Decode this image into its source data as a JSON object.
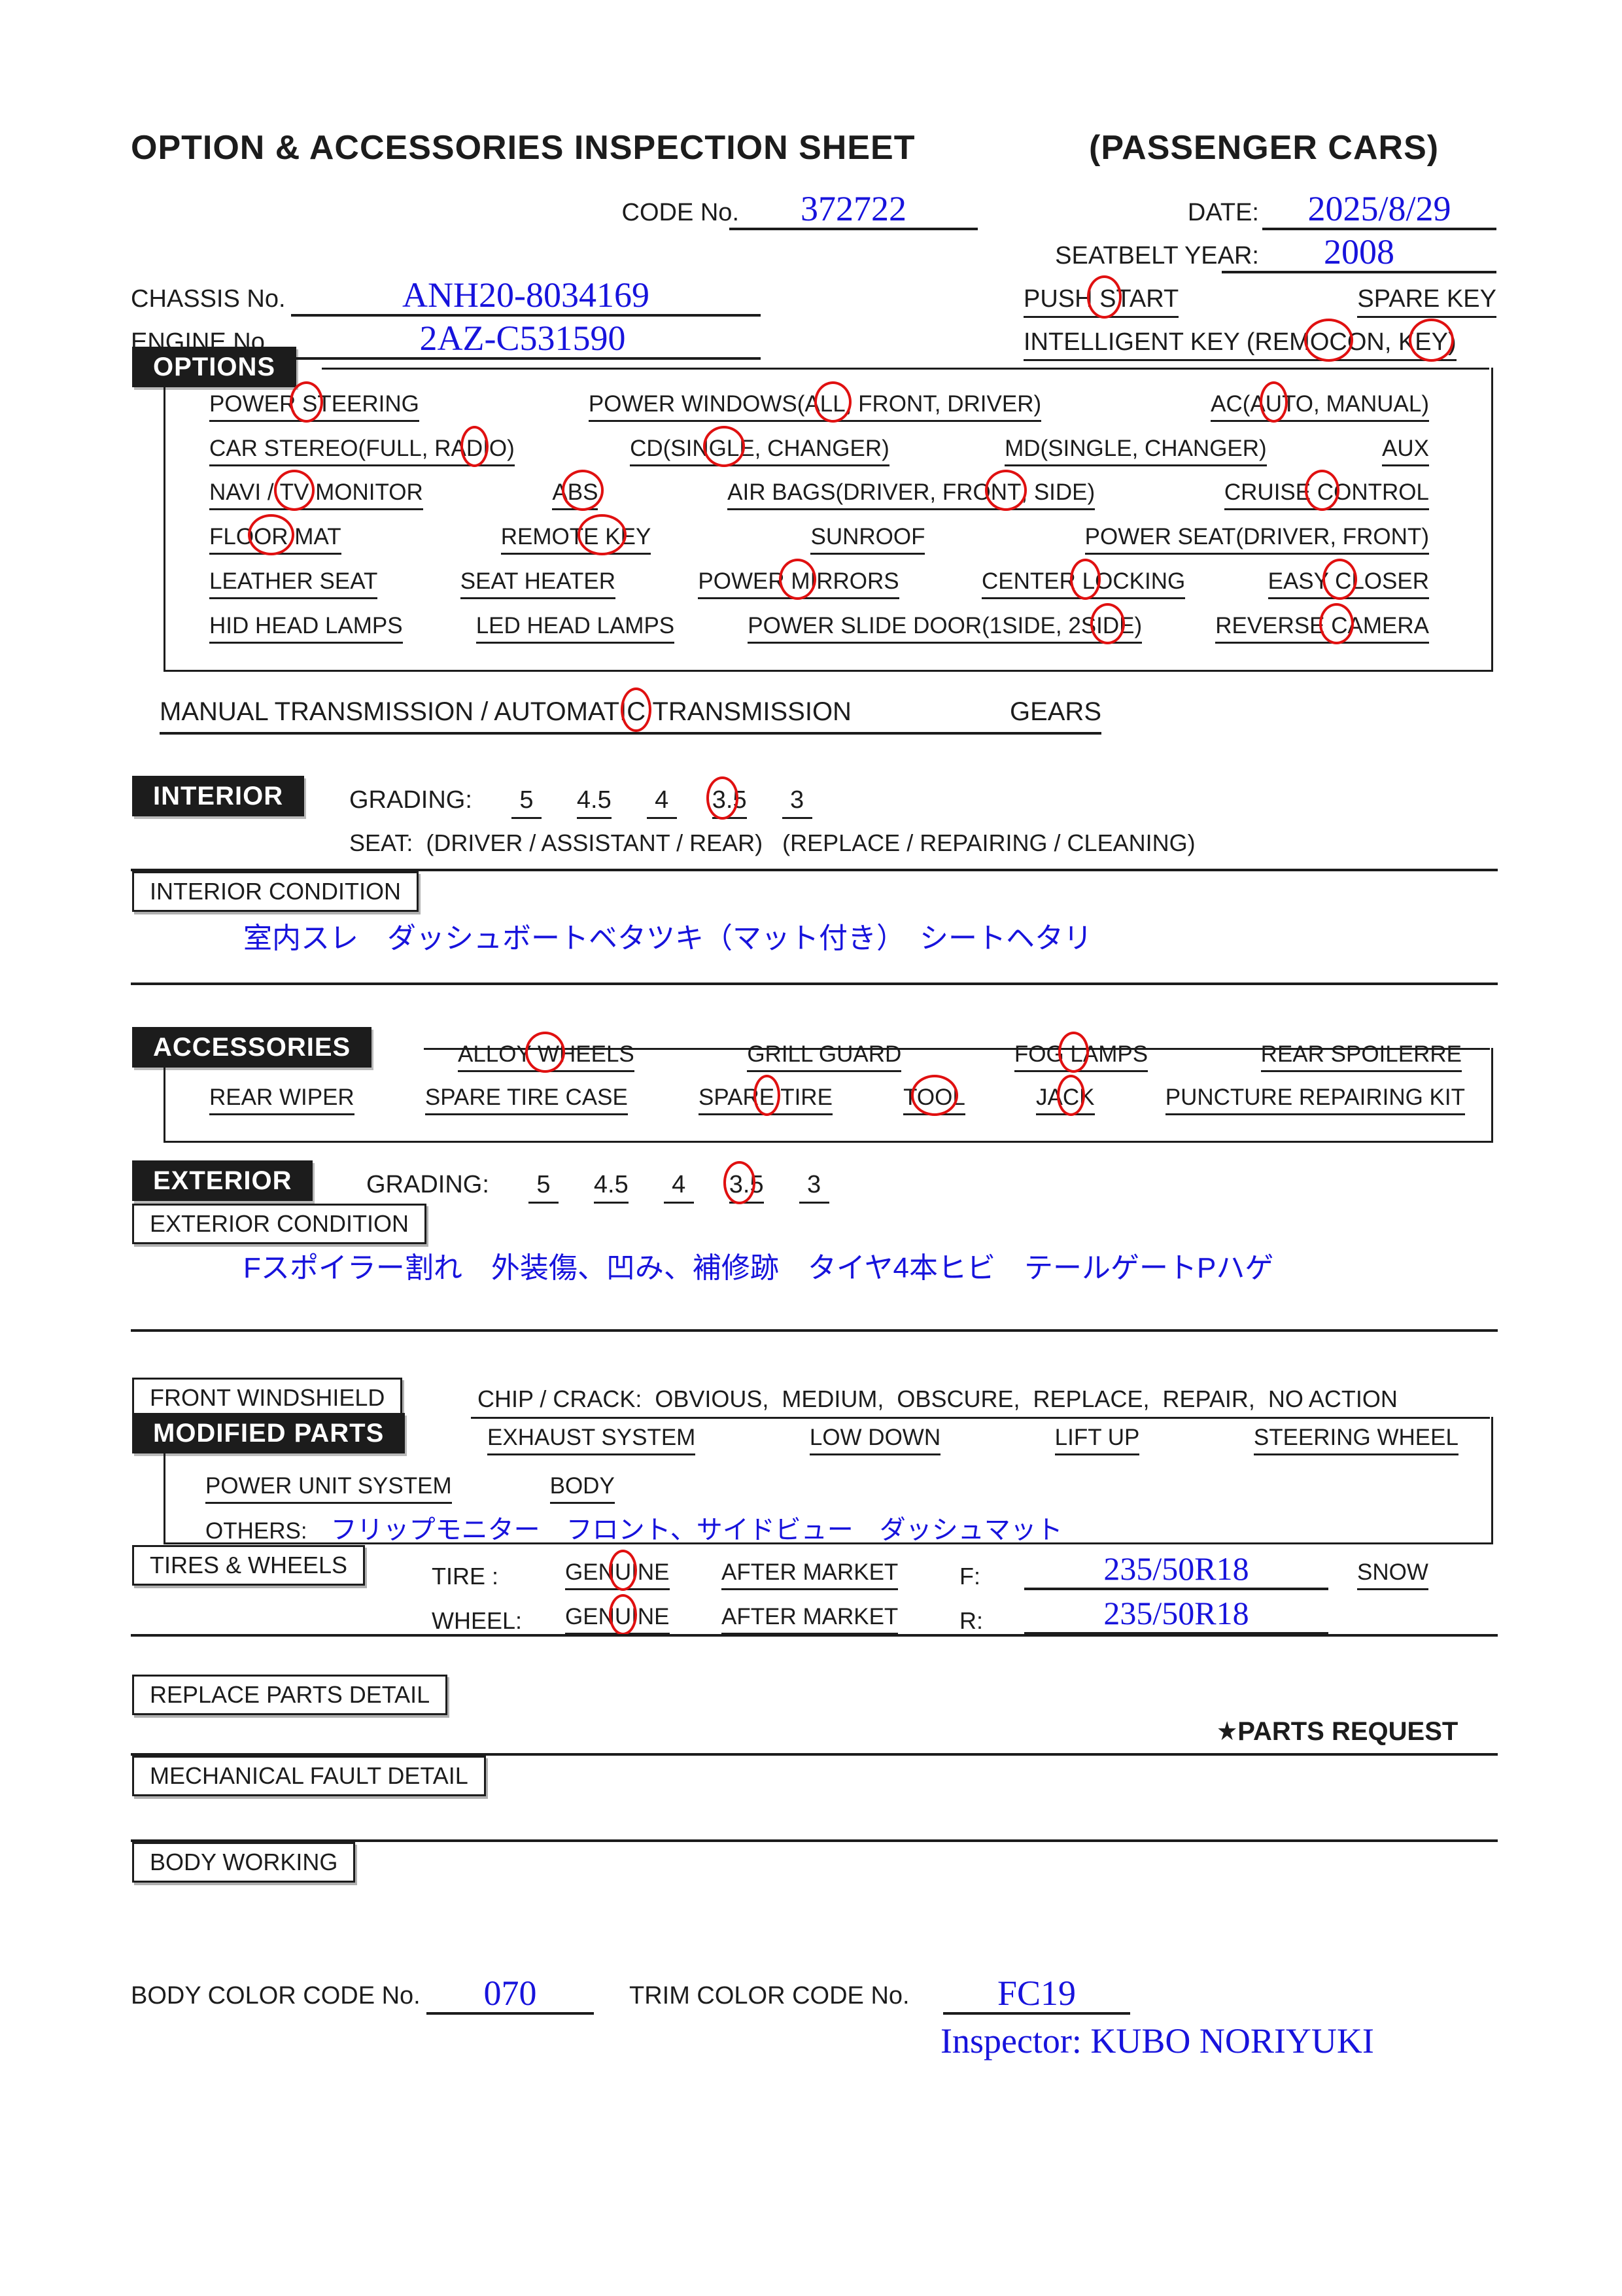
{
  "colors": {
    "ink": "#1c1c1c",
    "blue": "#1713dc",
    "red": "#e01010"
  },
  "page": {
    "title_left": "OPTION & ACCESSORIES INSPECTION SHEET",
    "title_right": "(PASSENGER CARS)"
  },
  "header": {
    "code_label": "CODE No.",
    "code_value": "372722",
    "date_label": "DATE:",
    "date_value": "2025/8/29",
    "seatbelt_label": "SEATBELT YEAR:",
    "seatbelt_value": "2008",
    "chassis_label": "CHASSIS No.",
    "chassis_value": "ANH20-8034169",
    "engine_label": "ENGINE No.",
    "engine_value": "2AZ-C531590",
    "push_start": [
      {
        "t": "PUSH"
      },
      {
        "t": " S",
        "c": 1
      },
      {
        "t": "TART"
      }
    ],
    "spare_key": [
      {
        "t": "SPARE KEY"
      }
    ],
    "intelligent_key": [
      {
        "t": "INTELLIGENT KEY (REM"
      },
      {
        "t": "OC",
        "c": 1
      },
      {
        "t": "ON, K"
      },
      {
        "t": "EY",
        "c": 1
      },
      {
        "t": ")"
      }
    ]
  },
  "options": {
    "label": "OPTIONS",
    "rows": [
      [
        [
          {
            "t": "POWER"
          },
          {
            "t": " S",
            "c": 1
          },
          {
            "t": "TEERING"
          }
        ],
        [
          {
            "t": "POWER WINDOWS(A"
          },
          {
            "t": "LL",
            "c": 1
          },
          {
            "t": ", FRONT, DRIVER)"
          }
        ],
        [
          {
            "t": "AC(A"
          },
          {
            "t": "U",
            "c": 1
          },
          {
            "t": "TO, MANUAL)"
          }
        ]
      ],
      [
        [
          {
            "t": "CAR STEREO(FULL, RA"
          },
          {
            "t": "D",
            "c": 1
          },
          {
            "t": "IO)"
          }
        ],
        [
          {
            "t": "CD(SIN"
          },
          {
            "t": "GL",
            "c": 1
          },
          {
            "t": "E, CHANGER)"
          }
        ],
        [
          {
            "t": "MD(SINGLE, CHANGER)"
          }
        ],
        [
          {
            "t": "AUX"
          }
        ]
      ],
      [
        [
          {
            "t": "NAVI / "
          },
          {
            "t": "TV",
            "c": 1
          },
          {
            "t": " MONITOR"
          }
        ],
        [
          {
            "t": "A"
          },
          {
            "t": "BS",
            "c": 1
          }
        ],
        [
          {
            "t": "AIR BAGS(DRIVER, FRO"
          },
          {
            "t": "NT",
            "c": 1
          },
          {
            "t": ", SIDE)"
          }
        ],
        [
          {
            "t": "CRUISE"
          },
          {
            "t": " C",
            "c": 1
          },
          {
            "t": "ONTROL"
          }
        ]
      ],
      [
        [
          {
            "t": "FLO"
          },
          {
            "t": "OR",
            "c": 1
          },
          {
            "t": " MAT"
          }
        ],
        [
          {
            "t": "REMOT"
          },
          {
            "t": "E K",
            "c": 1
          },
          {
            "t": "EY"
          }
        ],
        [
          {
            "t": "SUNROOF"
          }
        ],
        [
          {
            "t": "POWER SEAT(DRIVER, FRONT)"
          }
        ]
      ],
      [
        [
          {
            "t": "LEATHER SEAT"
          }
        ],
        [
          {
            "t": "SEAT HEATER"
          }
        ],
        [
          {
            "t": "POWER"
          },
          {
            "t": " M",
            "c": 1
          },
          {
            "t": "IRRORS"
          }
        ],
        [
          {
            "t": "CENTER"
          },
          {
            "t": " L",
            "c": 1
          },
          {
            "t": "OCKING"
          }
        ],
        [
          {
            "t": "EASY"
          },
          {
            "t": " C",
            "c": 1
          },
          {
            "t": "LOSER"
          }
        ]
      ],
      [
        [
          {
            "t": "HID HEAD LAMPS"
          }
        ],
        [
          {
            "t": "LED HEAD LAMPS"
          }
        ],
        [
          {
            "t": "POWER SLIDE DOOR(1SIDE,  2S"
          },
          {
            "t": "ID",
            "c": 1
          },
          {
            "t": "E)"
          }
        ],
        [
          {
            "t": "REVERSE"
          },
          {
            "t": " C",
            "c": 1
          },
          {
            "t": "AMERA"
          }
        ]
      ]
    ]
  },
  "transmission": {
    "main": [
      {
        "t": "MANUAL TRANSMISSION / AUTOMATI"
      },
      {
        "t": "C",
        "c": 1
      },
      {
        "t": " TRANSMISSION"
      }
    ],
    "gears_label": "GEARS"
  },
  "interior": {
    "label": "INTERIOR",
    "grading_label": "GRADING:",
    "grades": [
      [
        {
          "t": "5"
        }
      ],
      [
        {
          "t": "4.5"
        }
      ],
      [
        {
          "t": "4"
        }
      ],
      [
        {
          "t": "3.",
          "c": 1
        },
        {
          "t": "5"
        }
      ],
      [
        {
          "t": "3"
        }
      ]
    ],
    "seat_line": "SEAT:  (DRIVER / ASSISTANT / REAR)   (REPLACE / REPAIRING / CLEANING)",
    "condition_label": "INTERIOR CONDITION",
    "condition_note": "室内スレ　ダッシュボートベタツキ（マット付き）　シートヘタリ"
  },
  "accessories": {
    "label": "ACCESSORIES",
    "rows": [
      [
        [
          {
            "t": "ALLOY"
          },
          {
            "t": " W",
            "c": 1
          },
          {
            "t": "HEELS"
          }
        ],
        [
          {
            "t": "GRILL GUARD"
          }
        ],
        [
          {
            "t": "FOG"
          },
          {
            "t": " L",
            "c": 1
          },
          {
            "t": "AMPS"
          }
        ],
        [
          {
            "t": "REAR SPOILERRE"
          }
        ]
      ],
      [
        [
          {
            "t": "REAR WIPER"
          }
        ],
        [
          {
            "t": "SPARE TIRE CASE"
          }
        ],
        [
          {
            "t": "SPAR"
          },
          {
            "t": "E",
            "c": 1
          },
          {
            "t": " TIRE"
          }
        ],
        [
          {
            "t": "T"
          },
          {
            "t": "OO",
            "c": 1
          },
          {
            "t": "L"
          }
        ],
        [
          {
            "t": "JA"
          },
          {
            "t": "C",
            "c": 1
          },
          {
            "t": "K"
          }
        ],
        [
          {
            "t": "PUNCTURE REPAIRING KIT"
          }
        ]
      ]
    ]
  },
  "exterior": {
    "label": "EXTERIOR",
    "grading_label": "GRADING:",
    "grades": [
      [
        {
          "t": "5"
        }
      ],
      [
        {
          "t": "4.5"
        }
      ],
      [
        {
          "t": "4"
        }
      ],
      [
        {
          "t": "3.",
          "c": 1
        },
        {
          "t": "5"
        }
      ],
      [
        {
          "t": "3"
        }
      ]
    ],
    "condition_label": "EXTERIOR CONDITION",
    "condition_note": "Fスポイラー割れ　外装傷、凹み、補修跡　タイヤ4本ヒビ　テールゲートPハゲ"
  },
  "windshield": {
    "label": "FRONT WINDSHIELD",
    "chip_line": "CHIP / CRACK:  OBVIOUS,  MEDIUM,  OBSCURE,  REPLACE,  REPAIR,  NO ACTION"
  },
  "modified": {
    "label": "MODIFIED PARTS",
    "row1": [
      [
        {
          "t": "EXHAUST SYSTEM"
        }
      ],
      [
        {
          "t": "LOW DOWN"
        }
      ],
      [
        {
          "t": "LIFT UP"
        }
      ],
      [
        {
          "t": "STEERING WHEEL"
        }
      ]
    ],
    "row2": [
      [
        {
          "t": "POWER UNIT SYSTEM"
        }
      ],
      [
        {
          "t": "BODY"
        }
      ]
    ],
    "others_label": "OTHERS:",
    "others_note": "フリップモニター　フロント、サイドビュー　ダッシュマット"
  },
  "tires": {
    "label": "TIRES & WHEELS",
    "tire_label": "TIRE :",
    "wheel_label": "WHEEL:",
    "tire_genuine": [
      {
        "t": "GEN"
      },
      {
        "t": "U",
        "c": 1
      },
      {
        "t": "INE"
      }
    ],
    "wheel_genuine": [
      {
        "t": "GEN"
      },
      {
        "t": "U",
        "c": 1
      },
      {
        "t": "INE"
      }
    ],
    "after_market": "AFTER MARKET",
    "front_label": "F:",
    "front_value": "235/50R18",
    "rear_label": "R:",
    "rear_value": "235/50R18",
    "snow_label": "SNOW"
  },
  "details": {
    "replace_label": "REPLACE PARTS DETAIL",
    "parts_request": "★PARTS REQUEST",
    "mechanical_label": "MECHANICAL FAULT DETAIL",
    "body_working_label": "BODY WORKING"
  },
  "footer": {
    "body_color_label": "BODY COLOR CODE No.",
    "body_color_value": "070",
    "trim_color_label": "TRIM COLOR CODE No.",
    "trim_color_value": "FC19",
    "inspector": "Inspector: KUBO NORIYUKI"
  }
}
